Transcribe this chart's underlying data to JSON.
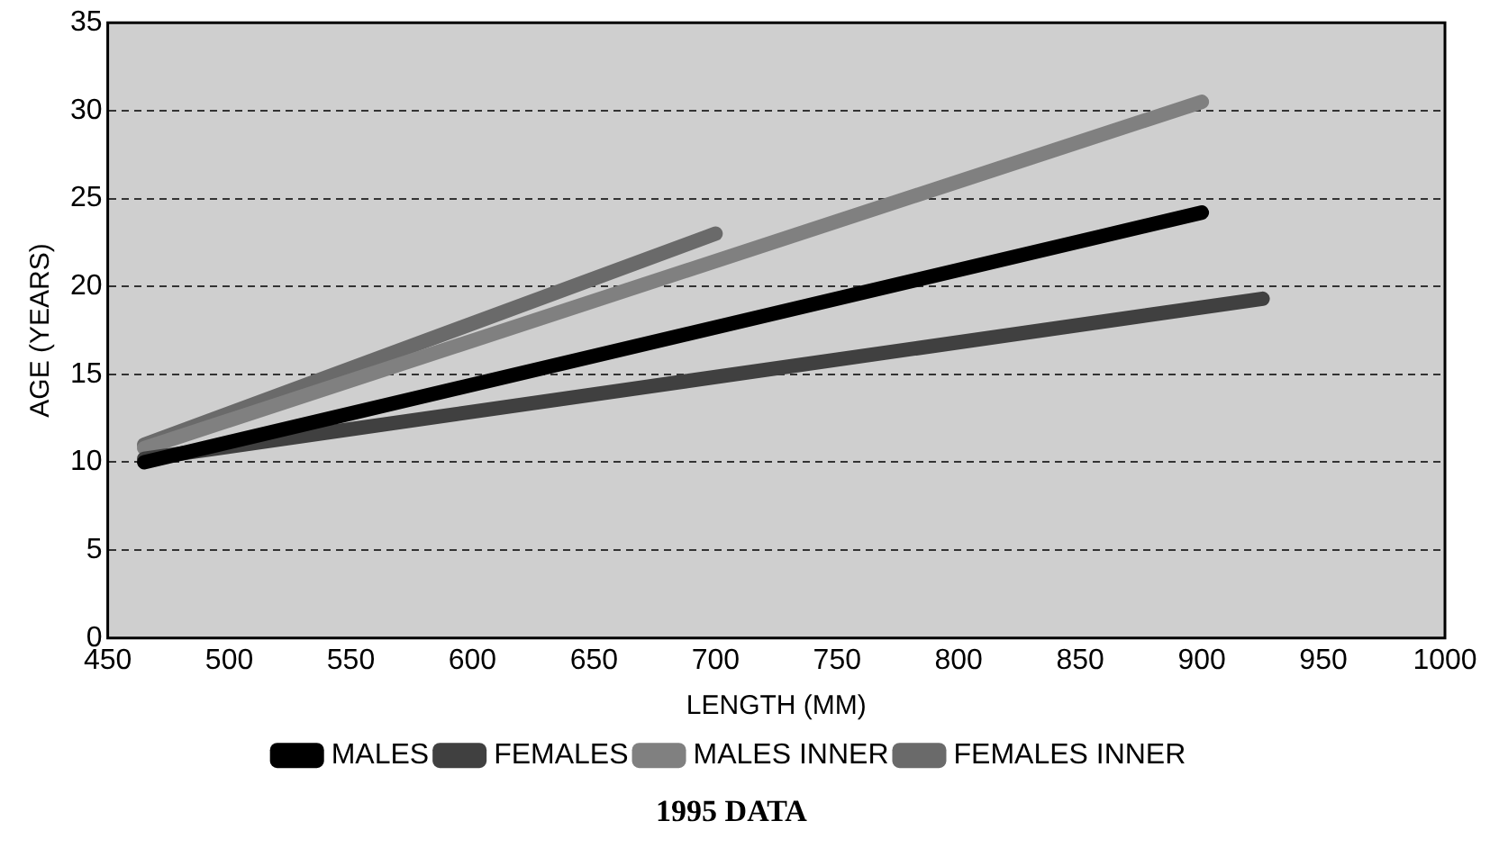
{
  "chart_data": {
    "type": "line",
    "title": "1995 DATA",
    "xlabel": "LENGTH (MM)",
    "ylabel": "AGE (YEARS)",
    "xlim": [
      450,
      1000
    ],
    "xticks": [
      450,
      500,
      550,
      600,
      650,
      700,
      750,
      800,
      850,
      900,
      950,
      1000
    ],
    "ylim": [
      0,
      35
    ],
    "yticks": [
      0,
      5,
      10,
      15,
      20,
      25,
      30,
      35
    ],
    "grid": "y",
    "legend": "bottom",
    "marker": "none",
    "line_style": "solid",
    "series": [
      {
        "name": "MALES",
        "color": "#000000",
        "x": [
          465,
          900
        ],
        "values": [
          10,
          24.2
        ]
      },
      {
        "name": "FEMALES",
        "color": "#404040",
        "x": [
          465,
          925
        ],
        "values": [
          10.2,
          19.3
        ]
      },
      {
        "name": "MALES INNER",
        "color": "#808080",
        "x": [
          465,
          900
        ],
        "values": [
          10.8,
          30.5
        ]
      },
      {
        "name": "FEMALES INNER",
        "color": "#6a6a6a",
        "x": [
          465,
          700
        ],
        "values": [
          11,
          23
        ]
      }
    ]
  }
}
